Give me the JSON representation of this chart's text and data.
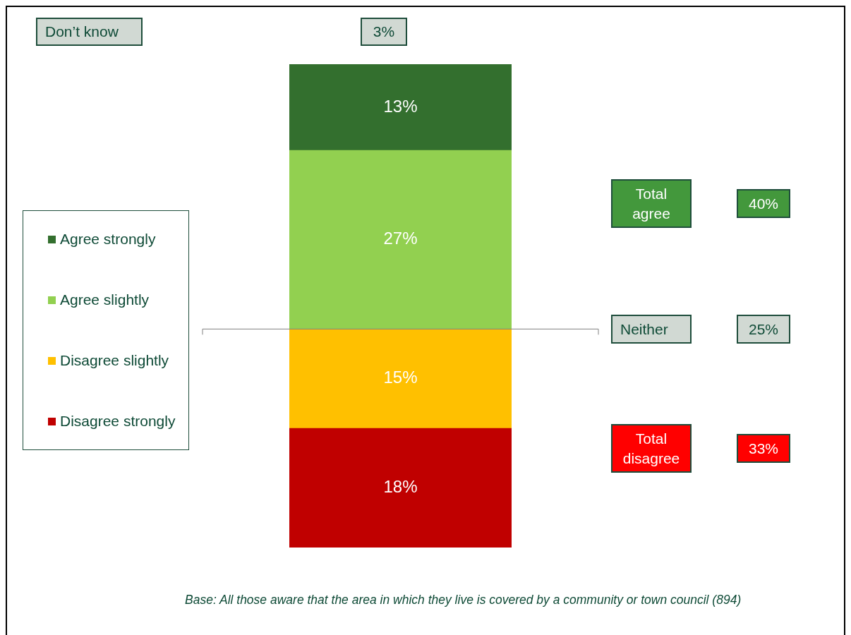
{
  "chart_data": {
    "type": "bar",
    "stacked": true,
    "categories": [
      null
    ],
    "series": [
      {
        "name": "Disagree strongly",
        "color": "#c00000",
        "values": [
          18
        ],
        "value_labels": [
          "18%"
        ]
      },
      {
        "name": "Disagree slightly",
        "color": "#ffc000",
        "values": [
          15
        ],
        "value_labels": [
          "15%"
        ]
      },
      {
        "name": "Agree slightly",
        "color": "#92d050",
        "values": [
          27
        ],
        "value_labels": [
          "27%"
        ]
      },
      {
        "name": "Agree strongly",
        "color": "#336f2e",
        "values": [
          13
        ],
        "value_labels": [
          "13%"
        ]
      }
    ],
    "legend": "left",
    "ref_lines": [
      {
        "axis": "y",
        "value": 33,
        "color": "#808080"
      }
    ],
    "annotations": [
      "Don’t know",
      "3%",
      "Total agree",
      "40%",
      "Neither",
      "25%",
      "Total disagree",
      "33%",
      "Base: All those aware that the area in which they live is covered by a community or town council (894)"
    ]
  }
}
